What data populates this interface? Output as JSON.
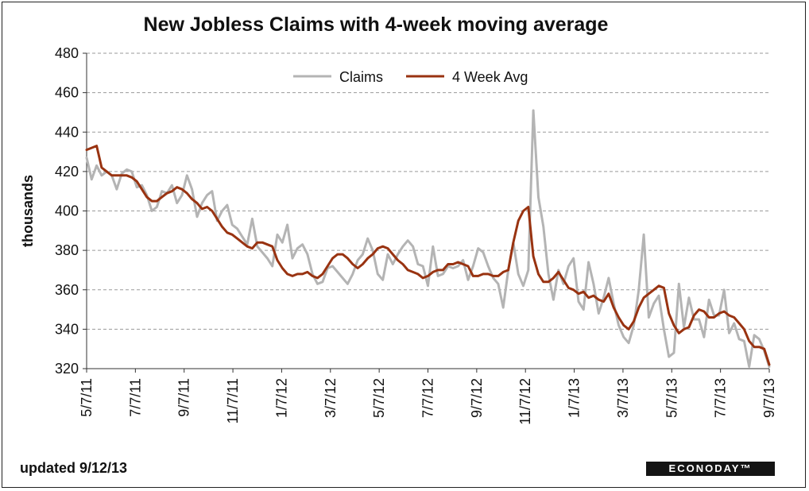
{
  "chart_data": {
    "type": "line",
    "title": "New Jobless Claims with 4-week moving average",
    "ylabel": "thousands",
    "xlabel": "",
    "ylim": [
      320,
      480
    ],
    "yticks": [
      320,
      340,
      360,
      380,
      400,
      420,
      440,
      460,
      480
    ],
    "grid": "horizontal dashed",
    "legend_position": "top",
    "x_tick_labels": [
      "5/7/11",
      "7/7/11",
      "9/7/11",
      "11/7/11",
      "1/7/12",
      "3/7/12",
      "5/7/12",
      "7/7/12",
      "9/7/12",
      "11/7/12",
      "1/7/13",
      "3/7/13",
      "5/7/13",
      "7/7/13",
      "9/7/13"
    ],
    "x_range": [
      "5/7/11",
      "9/7/13"
    ],
    "series": [
      {
        "name": "Claims",
        "color": "#b4b4b4",
        "values": [
          427,
          416,
          423,
          418,
          420,
          418,
          411,
          419,
          421,
          420,
          412,
          413,
          408,
          400,
          402,
          410,
          409,
          413,
          404,
          408,
          418,
          411,
          397,
          404,
          408,
          410,
          395,
          400,
          403,
          393,
          391,
          387,
          383,
          396,
          382,
          379,
          376,
          372,
          388,
          384,
          393,
          376,
          381,
          383,
          378,
          368,
          363,
          364,
          371,
          372,
          369,
          366,
          363,
          368,
          375,
          378,
          386,
          380,
          368,
          365,
          378,
          373,
          378,
          382,
          385,
          382,
          373,
          372,
          362,
          382,
          367,
          368,
          372,
          371,
          372,
          375,
          365,
          372,
          381,
          379,
          372,
          366,
          363,
          351,
          370,
          384,
          368,
          362,
          370,
          451,
          407,
          392,
          368,
          355,
          370,
          363,
          372,
          376,
          354,
          350,
          374,
          363,
          348,
          356,
          366,
          353,
          342,
          336,
          333,
          342,
          360,
          388,
          346,
          353,
          357,
          340,
          326,
          328,
          363,
          341,
          356,
          345,
          345,
          336,
          355,
          347,
          347,
          360,
          338,
          343,
          335,
          334,
          321,
          337,
          335,
          329,
          321
        ]
      },
      {
        "name": "4 Week Avg",
        "color": "#993311",
        "values": [
          431,
          432,
          433,
          422,
          420,
          418,
          418,
          418,
          418,
          417,
          415,
          411,
          407,
          405,
          405,
          407,
          409,
          410,
          412,
          411,
          409,
          406,
          404,
          401,
          402,
          400,
          396,
          392,
          389,
          388,
          386,
          384,
          382,
          381,
          384,
          384,
          383,
          382,
          375,
          371,
          368,
          367,
          368,
          368,
          369,
          367,
          366,
          368,
          372,
          376,
          378,
          378,
          376,
          373,
          371,
          373,
          376,
          378,
          381,
          382,
          381,
          378,
          375,
          373,
          370,
          369,
          368,
          366,
          367,
          369,
          370,
          370,
          373,
          373,
          374,
          373,
          372,
          367,
          367,
          368,
          368,
          367,
          367,
          369,
          370,
          384,
          395,
          400,
          402,
          377,
          368,
          364,
          364,
          366,
          369,
          365,
          361,
          360,
          358,
          359,
          356,
          357,
          355,
          354,
          358,
          351,
          346,
          342,
          340,
          344,
          351,
          356,
          358,
          360,
          362,
          361,
          348,
          342,
          338,
          340,
          341,
          347,
          350,
          349,
          346,
          346,
          348,
          349,
          347,
          346,
          343,
          340,
          334,
          331,
          331,
          330,
          322
        ]
      }
    ]
  },
  "footer": {
    "updated": "updated 9/12/13",
    "logo": "ECONODAY™"
  }
}
